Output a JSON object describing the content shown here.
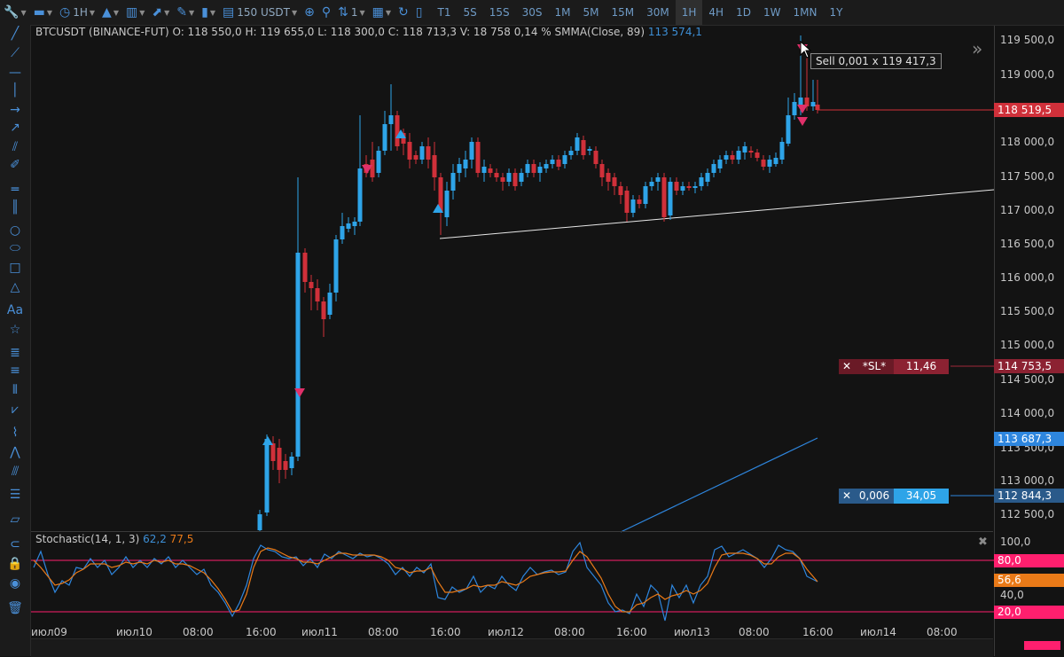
{
  "toolbar": {
    "interval": "1H",
    "quantity": "150 USDT",
    "steps": "1",
    "timeframes": [
      "T1",
      "5S",
      "15S",
      "30S",
      "1M",
      "5M",
      "15M",
      "30M",
      "1H",
      "4H",
      "1D",
      "1W",
      "1MN",
      "1Y"
    ],
    "active_timeframe": "1H"
  },
  "legend": {
    "symbol": "BTCUSDT (BINANCE-FUT)",
    "open": "O: 118 550,0",
    "high": "H: 119 655,0",
    "low": "L: 118 300,0",
    "close": "C: 118 713,3",
    "volume": "V: 18 758",
    "change": "0,14 %",
    "indicator": "SMMA(Close, 89)",
    "indicator_value": "113 574,1"
  },
  "y_axis": [
    "119 500,0",
    "119 000,0",
    "118 500,0",
    "118 000,0",
    "117 500,0",
    "117 000,0",
    "116 500,0",
    "116 000,0",
    "115 500,0",
    "115 000,0",
    "114 500,0",
    "114 000,0",
    "113 500,0",
    "113 000,0",
    "112 500,0"
  ],
  "price_tags": {
    "last": "118 519,5",
    "stop_loss": "114 753,5",
    "smma": "113 687,3",
    "position": "112 844,3"
  },
  "tooltip": "Sell 0,001 x 119 417,3",
  "orders": {
    "sl_label": "*SL*",
    "sl_value": "11,46",
    "pos_qty": "0,006",
    "pos_value": "34,05"
  },
  "stoch": {
    "title": "Stochastic(14, 1, 3)",
    "k": "62,2",
    "d": "77,5",
    "axis": [
      "100,0",
      "80,0",
      "56,6",
      "40,0",
      "20,0"
    ]
  },
  "x_axis": [
    "июл09",
    "июл10",
    "08:00",
    "16:00",
    "июл11",
    "08:00",
    "16:00",
    "июл12",
    "08:00",
    "16:00",
    "июл13",
    "08:00",
    "16:00",
    "июл14",
    "08:00"
  ],
  "colors": {
    "up": "#2ea4e8",
    "down": "#d0303a",
    "pink": "#ff1f6e",
    "orange": "#e97a18",
    "accent": "#4a90d9"
  }
}
